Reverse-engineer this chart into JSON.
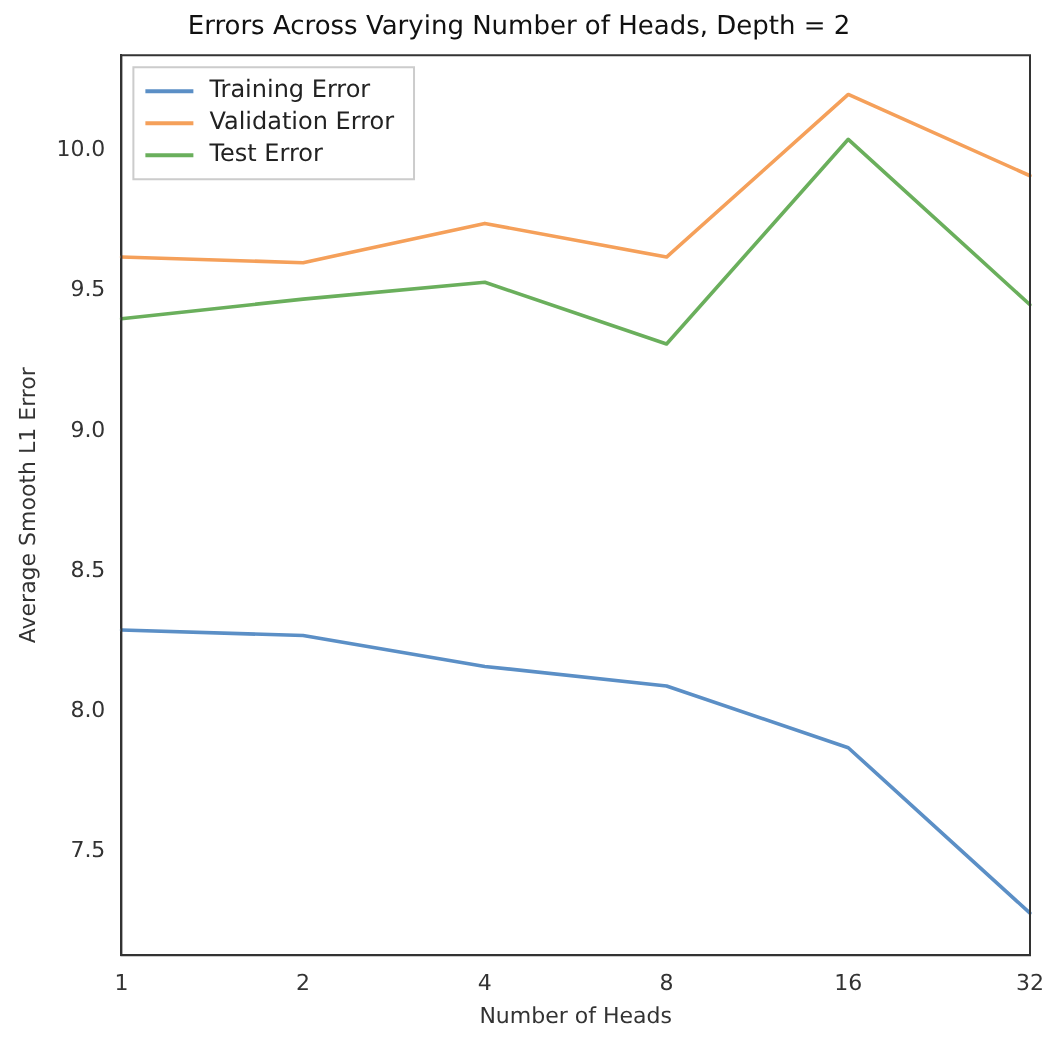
{
  "chart_data": {
    "type": "line",
    "title": "Errors Across Varying Number of Heads, Depth = 2",
    "xlabel": "Number of Heads",
    "ylabel": "Average Smooth L1 Error",
    "categories": [
      "1",
      "2",
      "4",
      "8",
      "16",
      "32"
    ],
    "series": [
      {
        "name": "Training Error",
        "color": "#5b8fc6",
        "values": [
          8.29,
          8.27,
          8.16,
          8.09,
          7.87,
          7.28
        ]
      },
      {
        "name": "Validation Error",
        "color": "#f5a05a",
        "values": [
          9.62,
          9.6,
          9.74,
          9.62,
          10.2,
          9.91
        ]
      },
      {
        "name": "Test Error",
        "color": "#6aaf5c",
        "values": [
          9.4,
          9.47,
          9.53,
          9.31,
          10.04,
          9.45
        ]
      }
    ],
    "ylim": [
      7.13,
      10.34
    ],
    "yticks": [
      7.5,
      {
        "value": 8,
        "label": "8.0"
      },
      8.5,
      {
        "value": 9,
        "label": "9.0"
      },
      9.5,
      {
        "value": 10,
        "label": "10.0"
      }
    ],
    "grid": false,
    "legend": "top left",
    "marker": "none",
    "line_style": "solid"
  }
}
